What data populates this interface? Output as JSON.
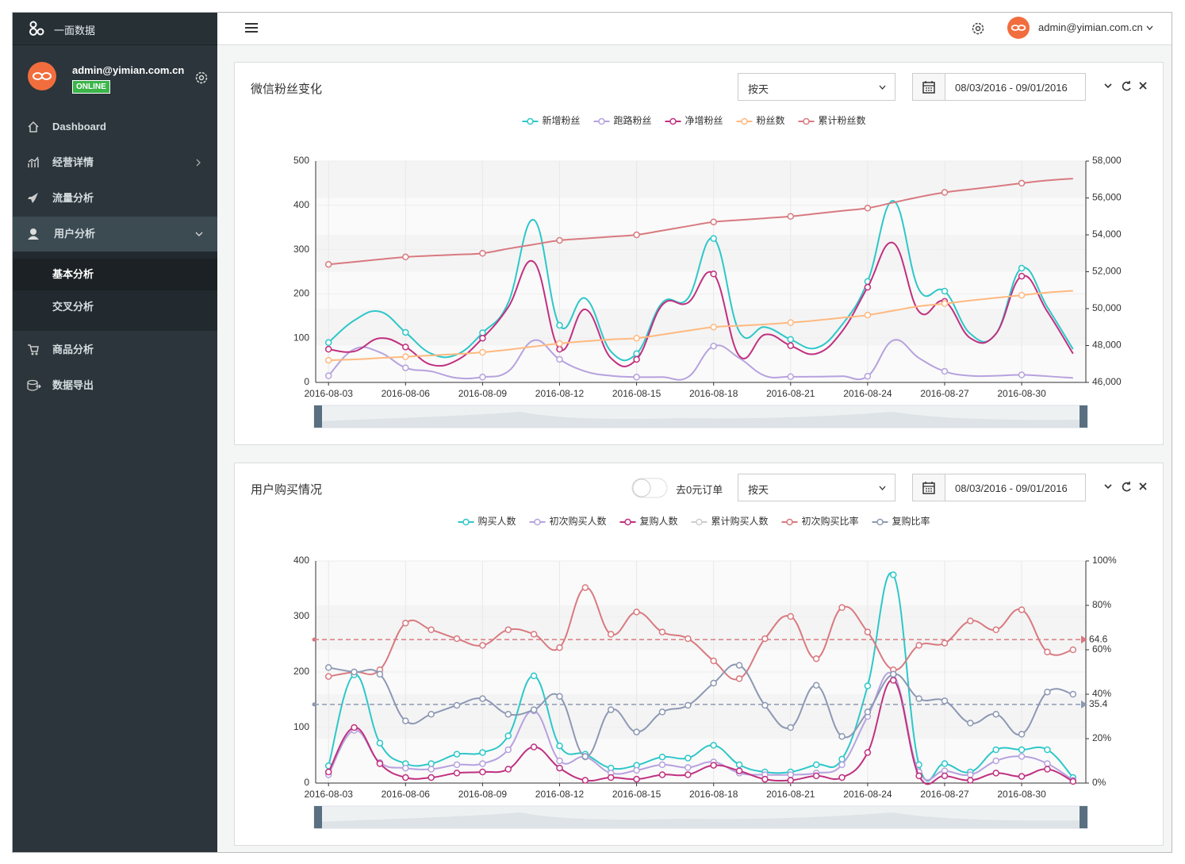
{
  "sidebar": {
    "brand": "一面数据",
    "user": {
      "email": "admin@yimian.com.cn",
      "status": "ONLINE"
    },
    "menu": [
      "Dashboard",
      "经营详情",
      "流量分析",
      "用户分析",
      "商品分析",
      "数据导出"
    ],
    "submenu": [
      "基本分析",
      "交叉分析"
    ]
  },
  "header": {
    "user": "admin@yimian.com.cn"
  },
  "panels": [
    {
      "title": "微信粉丝变化",
      "filter": "按天",
      "date_range": "08/03/2016 - 09/01/2016"
    },
    {
      "title": "用户购买情况",
      "toggle": "去0元订单",
      "filter": "按天",
      "date_range": "08/03/2016 - 09/01/2016"
    }
  ],
  "chart_data": [
    {
      "type": "line",
      "smooth": true,
      "marker_every": 3,
      "grid": true,
      "split_area": true,
      "categories": [
        "2016-08-03",
        null,
        null,
        "2016-08-06",
        null,
        null,
        "2016-08-09",
        null,
        null,
        "2016-08-12",
        null,
        null,
        "2016-08-15",
        null,
        null,
        "2016-08-18",
        null,
        null,
        "2016-08-21",
        null,
        null,
        "2016-08-24",
        null,
        null,
        "2016-08-27",
        null,
        null,
        "2016-08-30",
        null,
        null
      ],
      "ylim": [
        0,
        500
      ],
      "yticks": [
        0,
        100,
        200,
        300,
        400,
        500
      ],
      "y2lim": [
        46000,
        58000
      ],
      "y2ticks": [
        {
          "value": 46000,
          "label": "46,000"
        },
        {
          "value": 48000,
          "label": "48,000"
        },
        {
          "value": 50000,
          "label": "50,000"
        },
        {
          "value": 52000,
          "label": "52,000"
        },
        {
          "value": 54000,
          "label": "54,000"
        },
        {
          "value": 56000,
          "label": "56,000"
        },
        {
          "value": 58000,
          "label": "58,000"
        }
      ],
      "series": [
        {
          "name": "新增粉丝",
          "color": "#2ec7c9",
          "values": [
            90,
            140,
            160,
            113,
            65,
            63,
            112,
            180,
            367,
            129,
            190,
            70,
            65,
            180,
            190,
            325,
            115,
            125,
            97,
            78,
            130,
            228,
            410,
            210,
            206,
            110,
            110,
            258,
            170,
            75
          ]
        },
        {
          "name": "跑路粉丝",
          "color": "#b6a2de",
          "values": [
            15,
            75,
            68,
            33,
            25,
            10,
            12,
            25,
            95,
            52,
            25,
            15,
            12,
            12,
            12,
            82,
            55,
            15,
            13,
            13,
            14,
            14,
            95,
            55,
            25,
            15,
            15,
            17,
            14,
            10
          ]
        },
        {
          "name": "净增粉丝",
          "color": "#c0307f",
          "values": [
            75,
            70,
            100,
            80,
            40,
            50,
            100,
            170,
            272,
            75,
            165,
            55,
            52,
            175,
            180,
            245,
            60,
            108,
            83,
            65,
            115,
            215,
            315,
            160,
            183,
            100,
            110,
            240,
            160,
            65
          ]
        },
        {
          "name": "粉丝数",
          "color": "#ffb980",
          "values": [
            50,
            52,
            55,
            58,
            61,
            64,
            68,
            74,
            81,
            88,
            93,
            97,
            100,
            108,
            117,
            125,
            128,
            131,
            135,
            140,
            146,
            152,
            162,
            172,
            178,
            185,
            191,
            197,
            203,
            207
          ]
        },
        {
          "name": "累计粉丝数",
          "color": "#d87a80",
          "axis": "y2",
          "values": [
            52400,
            52530,
            52670,
            52800,
            52870,
            52930,
            53000,
            53250,
            53480,
            53700,
            53800,
            53900,
            54000,
            54230,
            54470,
            54700,
            54800,
            54900,
            55000,
            55150,
            55300,
            55450,
            55750,
            56050,
            56300,
            56470,
            56630,
            56800,
            56950,
            57050
          ]
        }
      ]
    },
    {
      "type": "line",
      "smooth": true,
      "marker_every": 1,
      "grid": true,
      "split_area": true,
      "categories": [
        "2016-08-03",
        null,
        null,
        "2016-08-06",
        null,
        null,
        "2016-08-09",
        null,
        null,
        "2016-08-12",
        null,
        null,
        "2016-08-15",
        null,
        null,
        "2016-08-18",
        null,
        null,
        "2016-08-21",
        null,
        null,
        "2016-08-24",
        null,
        null,
        "2016-08-27",
        null,
        null,
        "2016-08-30",
        null,
        null
      ],
      "ylim": [
        0,
        400
      ],
      "yticks": [
        0,
        100,
        200,
        300,
        400
      ],
      "y2lim": [
        0,
        100
      ],
      "y2ticks": [
        {
          "value": 0,
          "label": "0%"
        },
        {
          "value": 20,
          "label": "20%"
        },
        {
          "value": 40,
          "label": "40%"
        },
        {
          "value": 60,
          "label": "60%"
        },
        {
          "value": 80,
          "label": "80%"
        },
        {
          "value": 100,
          "label": "100%"
        }
      ],
      "series": [
        {
          "name": "购买人数",
          "color": "#2ec7c9",
          "values": [
            31,
            195,
            72,
            35,
            35,
            52,
            55,
            85,
            193,
            67,
            52,
            27,
            32,
            47,
            45,
            68,
            33,
            20,
            20,
            33,
            43,
            175,
            375,
            33,
            35,
            20,
            60,
            60,
            60,
            10
          ]
        },
        {
          "name": "初次购买人数",
          "color": "#b6a2de",
          "values": [
            15,
            95,
            37,
            27,
            25,
            33,
            35,
            60,
            130,
            40,
            47,
            18,
            23,
            33,
            28,
            38,
            18,
            15,
            15,
            18,
            33,
            120,
            195,
            20,
            22,
            15,
            40,
            48,
            35,
            5
          ]
        },
        {
          "name": "复购人数",
          "color": "#c0307f",
          "values": [
            20,
            100,
            35,
            10,
            10,
            18,
            20,
            25,
            65,
            27,
            5,
            10,
            7,
            15,
            15,
            32,
            22,
            7,
            5,
            13,
            10,
            55,
            185,
            13,
            13,
            5,
            18,
            12,
            25,
            3
          ]
        },
        {
          "name": "累计购买人数",
          "color": "#cccccc",
          "hidden": true
        },
        {
          "name": "初次购买比率",
          "color": "#d87a80",
          "axis": "y2",
          "mark_line": 64.6,
          "values": [
            48,
            50,
            51,
            72,
            69,
            65,
            62,
            69,
            67,
            61,
            88,
            67,
            77,
            68,
            65,
            55,
            47,
            65,
            75,
            56,
            79,
            68,
            51,
            62,
            63,
            73,
            69,
            78,
            59,
            60
          ]
        },
        {
          "name": "复购比率",
          "color": "#8d98b3",
          "axis": "y2",
          "mark_line": 35.4,
          "values": [
            52,
            50,
            49,
            28,
            31,
            35,
            38,
            31,
            33,
            39,
            12,
            33,
            23,
            32,
            35,
            45,
            53,
            35,
            25,
            44,
            21,
            32,
            49,
            38,
            37,
            27,
            31,
            22,
            41,
            40
          ]
        }
      ]
    }
  ]
}
